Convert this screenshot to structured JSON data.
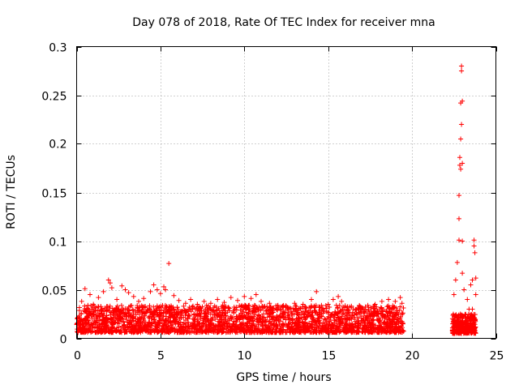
{
  "chart_data": {
    "type": "scatter",
    "title": "Day 078 of 2018, Rate Of TEC Index for receiver mna",
    "xlabel": "GPS time / hours",
    "ylabel": "ROTI / TECUs",
    "xlim": [
      0,
      25
    ],
    "ylim": [
      0,
      0.3
    ],
    "x_ticks": [
      0,
      5,
      10,
      15,
      20,
      25
    ],
    "x_tick_labels": [
      "0",
      "5",
      "10",
      "15",
      "20",
      "25"
    ],
    "y_ticks": [
      0,
      0.05,
      0.1,
      0.15,
      0.2,
      0.25,
      0.3
    ],
    "y_tick_labels": [
      "0",
      "0.05",
      "0.1",
      "0.15",
      "0.2",
      "0.25",
      "0.3"
    ],
    "grid": true,
    "marker": "plus",
    "color": "#ff0000",
    "series": [
      {
        "name": "ROTI",
        "points": [
          [
            0.3,
            0.038
          ],
          [
            0.5,
            0.051
          ],
          [
            0.8,
            0.045
          ],
          [
            1.0,
            0.035
          ],
          [
            1.3,
            0.042
          ],
          [
            1.6,
            0.048
          ],
          [
            1.9,
            0.06
          ],
          [
            2.0,
            0.057
          ],
          [
            2.1,
            0.052
          ],
          [
            2.4,
            0.04
          ],
          [
            2.7,
            0.054
          ],
          [
            2.9,
            0.05
          ],
          [
            3.1,
            0.047
          ],
          [
            3.4,
            0.043
          ],
          [
            3.7,
            0.038
          ],
          [
            4.0,
            0.041
          ],
          [
            4.4,
            0.048
          ],
          [
            4.6,
            0.055
          ],
          [
            4.8,
            0.05
          ],
          [
            5.0,
            0.046
          ],
          [
            5.2,
            0.053
          ],
          [
            5.3,
            0.05
          ],
          [
            5.5,
            0.077
          ],
          [
            5.8,
            0.044
          ],
          [
            6.1,
            0.039
          ],
          [
            6.5,
            0.036
          ],
          [
            6.8,
            0.04
          ],
          [
            7.2,
            0.035
          ],
          [
            7.6,
            0.038
          ],
          [
            8.0,
            0.036
          ],
          [
            8.4,
            0.04
          ],
          [
            8.8,
            0.037
          ],
          [
            9.2,
            0.042
          ],
          [
            9.6,
            0.039
          ],
          [
            10.0,
            0.043
          ],
          [
            10.4,
            0.041
          ],
          [
            10.7,
            0.045
          ],
          [
            11.0,
            0.038
          ],
          [
            11.5,
            0.036
          ],
          [
            12.0,
            0.034
          ],
          [
            12.5,
            0.033
          ],
          [
            13.0,
            0.036
          ],
          [
            13.5,
            0.035
          ],
          [
            14.0,
            0.04
          ],
          [
            14.3,
            0.048
          ],
          [
            14.6,
            0.034
          ],
          [
            15.0,
            0.035
          ],
          [
            15.3,
            0.04
          ],
          [
            15.6,
            0.043
          ],
          [
            15.8,
            0.038
          ],
          [
            16.2,
            0.028
          ],
          [
            16.6,
            0.026
          ],
          [
            17.0,
            0.03
          ],
          [
            17.4,
            0.032
          ],
          [
            17.8,
            0.035
          ],
          [
            18.2,
            0.038
          ],
          [
            18.6,
            0.04
          ],
          [
            19.0,
            0.038
          ],
          [
            19.3,
            0.042
          ],
          [
            19.4,
            0.036
          ],
          [
            22.5,
            0.045
          ],
          [
            22.6,
            0.06
          ],
          [
            22.7,
            0.078
          ],
          [
            22.8,
            0.101
          ],
          [
            22.8,
            0.123
          ],
          [
            22.8,
            0.147
          ],
          [
            22.85,
            0.178
          ],
          [
            22.85,
            0.186
          ],
          [
            22.9,
            0.205
          ],
          [
            22.9,
            0.242
          ],
          [
            22.95,
            0.22
          ],
          [
            22.95,
            0.275
          ],
          [
            22.95,
            0.28
          ],
          [
            23.0,
            0.244
          ],
          [
            23.0,
            0.18
          ],
          [
            22.9,
            0.174
          ],
          [
            23.0,
            0.1
          ],
          [
            23.0,
            0.067
          ],
          [
            23.1,
            0.05
          ],
          [
            23.3,
            0.04
          ],
          [
            23.5,
            0.055
          ],
          [
            23.6,
            0.06
          ],
          [
            23.7,
            0.101
          ],
          [
            23.7,
            0.095
          ],
          [
            23.75,
            0.088
          ],
          [
            23.8,
            0.062
          ],
          [
            23.8,
            0.045
          ],
          [
            23.4,
            0.03
          ],
          [
            23.6,
            0.03
          ]
        ]
      }
    ]
  }
}
